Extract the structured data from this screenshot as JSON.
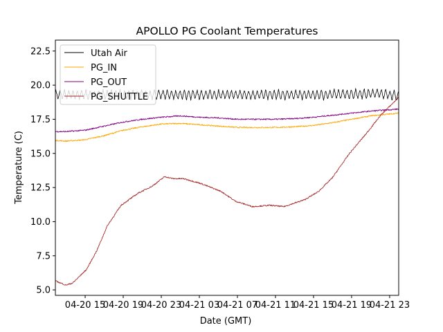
{
  "chart_data": {
    "type": "line",
    "title": "APOLLO PG Coolant Temperatures",
    "xlabel": "Date (GMT)",
    "ylabel": "Temperature (C)",
    "x_unit": "hours since 04-20 00:00 GMT",
    "xlim": [
      11.87,
      47.95
    ],
    "ylim": [
      4.6,
      23.3
    ],
    "grid": false,
    "legend_position": "top-left",
    "x_ticks": [
      {
        "value": 15,
        "label": "04-20 15"
      },
      {
        "value": 19,
        "label": "04-20 19"
      },
      {
        "value": 23,
        "label": "04-20 23"
      },
      {
        "value": 27,
        "label": "04-21 03"
      },
      {
        "value": 31,
        "label": "04-21 07"
      },
      {
        "value": 35,
        "label": "04-21 11"
      },
      {
        "value": 39,
        "label": "04-21 15"
      },
      {
        "value": 43,
        "label": "04-21 19"
      },
      {
        "value": 47,
        "label": "04-21 23"
      }
    ],
    "y_ticks": [
      {
        "value": 5.0,
        "label": "5.0"
      },
      {
        "value": 7.5,
        "label": "7.5"
      },
      {
        "value": 10.0,
        "label": "10.0"
      },
      {
        "value": 12.5,
        "label": "12.5"
      },
      {
        "value": 15.0,
        "label": "15.0"
      },
      {
        "value": 17.5,
        "label": "17.5"
      },
      {
        "value": 20.0,
        "label": "20.0"
      },
      {
        "value": 22.5,
        "label": "22.5"
      }
    ],
    "series": [
      {
        "name": "Utah Air",
        "color": "#000000",
        "oscillation": {
          "center": 19.3,
          "amplitude": 0.35,
          "period_hours": 0.45
        },
        "x": [
          11.87,
          20,
          30,
          40,
          46,
          47.95
        ],
        "y": [
          19.3,
          19.3,
          19.3,
          19.3,
          19.4,
          19.2
        ]
      },
      {
        "name": "PG_IN",
        "color": "#ffa500",
        "x": [
          11.87,
          13,
          15,
          17,
          19,
          21,
          23,
          25,
          27,
          29,
          31,
          33,
          35,
          37,
          39,
          41,
          43,
          45,
          47.95
        ],
        "y": [
          15.95,
          15.9,
          16.0,
          16.3,
          16.7,
          16.95,
          17.15,
          17.2,
          17.1,
          17.0,
          16.9,
          16.9,
          16.9,
          16.95,
          17.05,
          17.25,
          17.5,
          17.75,
          17.95
        ]
      },
      {
        "name": "PG_OUT",
        "color": "#800080",
        "x": [
          11.87,
          13,
          15,
          17,
          19,
          21,
          23,
          25,
          27,
          29,
          31,
          33,
          35,
          37,
          39,
          41,
          43,
          45,
          47.95
        ],
        "y": [
          16.6,
          16.6,
          16.7,
          17.0,
          17.3,
          17.5,
          17.65,
          17.75,
          17.65,
          17.6,
          17.5,
          17.5,
          17.5,
          17.55,
          17.65,
          17.8,
          17.95,
          18.1,
          18.25
        ]
      },
      {
        "name": "PG_SHUTTLE",
        "color": "#a52a2a",
        "x": [
          11.87,
          12.96,
          13.69,
          15.15,
          16.24,
          17.33,
          18.78,
          20.6,
          22.05,
          23.36,
          24.24,
          25.33,
          27.15,
          29.33,
          30.78,
          32.6,
          34.42,
          35.87,
          38.05,
          39.51,
          40.96,
          42.78,
          44.6,
          46.06,
          47.95
        ],
        "y": [
          5.66,
          5.35,
          5.5,
          6.5,
          7.9,
          9.7,
          11.2,
          12.1,
          12.6,
          13.3,
          13.15,
          13.15,
          12.8,
          12.2,
          11.5,
          11.1,
          11.2,
          11.1,
          11.6,
          12.2,
          13.2,
          15.0,
          16.5,
          17.8,
          19.1
        ]
      }
    ]
  }
}
